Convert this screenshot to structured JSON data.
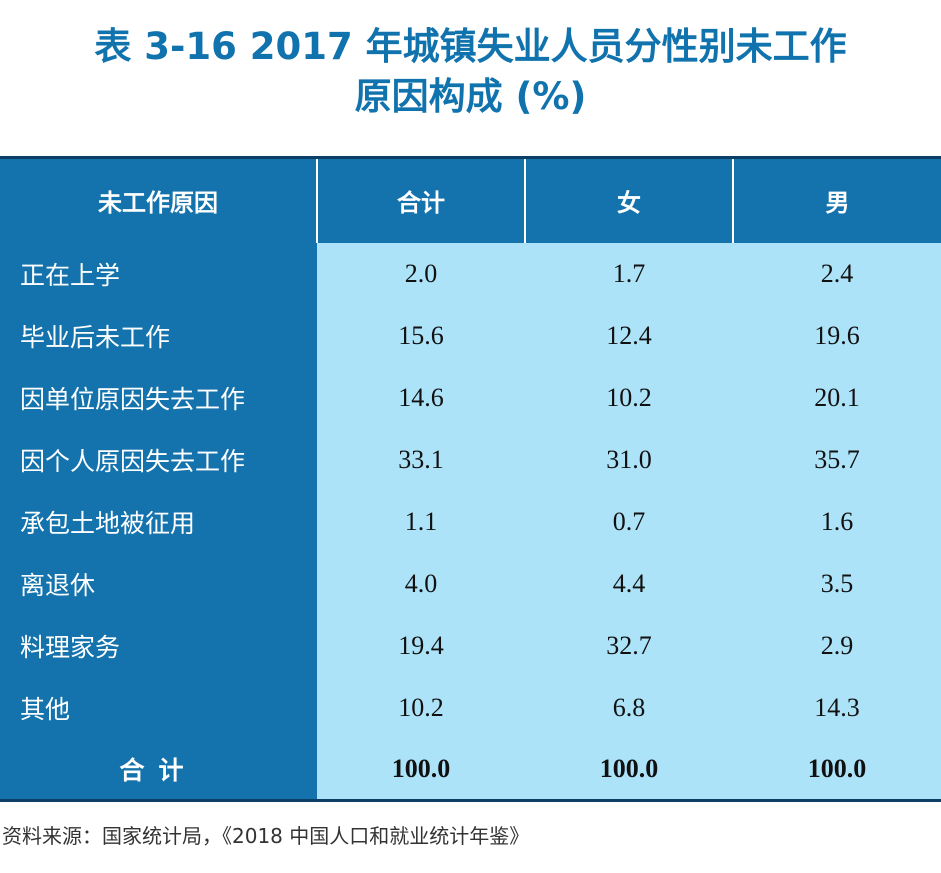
{
  "title": {
    "line1": "表 3-16  2017 年城镇失业人员分性别未工作",
    "line2": "原因构成 (%)"
  },
  "table": {
    "headers": [
      "未工作原因",
      "合计",
      "女",
      "男"
    ],
    "rows": [
      {
        "label": "正在上学",
        "total": "2.0",
        "female": "1.7",
        "male": "2.4"
      },
      {
        "label": "毕业后未工作",
        "total": "15.6",
        "female": "12.4",
        "male": "19.6"
      },
      {
        "label": "因单位原因失去工作",
        "total": "14.6",
        "female": "10.2",
        "male": "20.1"
      },
      {
        "label": "因个人原因失去工作",
        "total": "33.1",
        "female": "31.0",
        "male": "35.7"
      },
      {
        "label": "承包土地被征用",
        "total": "1.1",
        "female": "0.7",
        "male": "1.6"
      },
      {
        "label": "离退休",
        "total": "4.0",
        "female": "4.4",
        "male": "3.5"
      },
      {
        "label": "料理家务",
        "total": "19.4",
        "female": "32.7",
        "male": "2.9"
      },
      {
        "label": "其他",
        "total": "10.2",
        "female": "6.8",
        "male": "14.3"
      }
    ],
    "total_row": {
      "label": "合计",
      "total": "100.0",
      "female": "100.0",
      "male": "100.0"
    }
  },
  "source": "资料来源：国家统计局，《2018 中国人口和就业统计年鉴》",
  "colors": {
    "title": "#1173ad",
    "header_bg": "#1473ad",
    "label_bg": "#1473ad",
    "value_bg": "#ade3f8"
  }
}
